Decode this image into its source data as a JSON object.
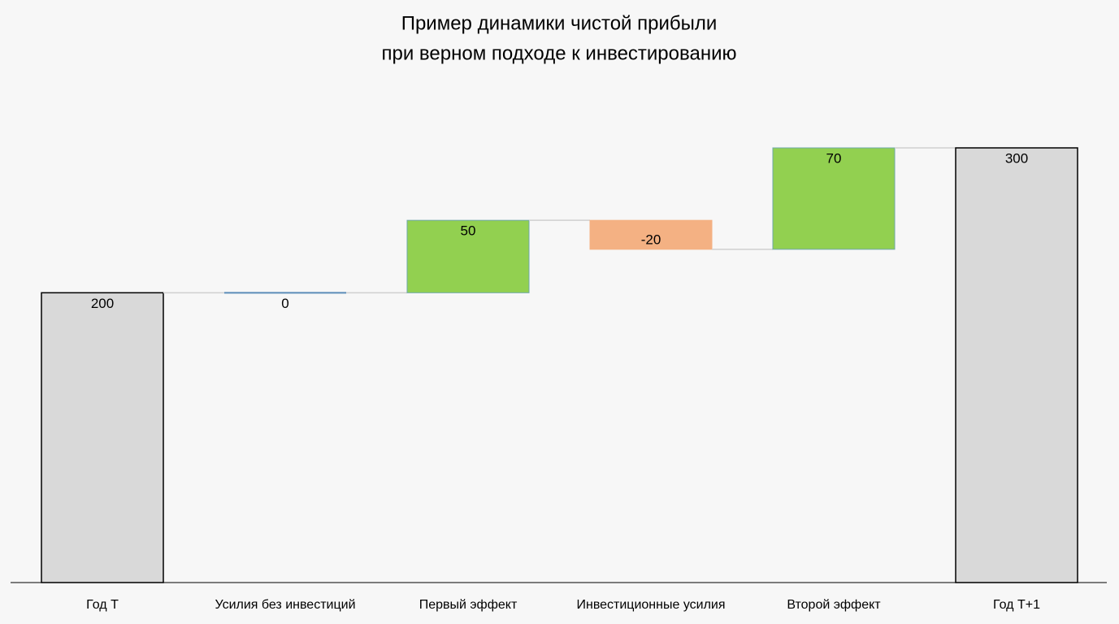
{
  "chart_data": {
    "type": "waterfall",
    "title": [
      "Пример динамики чистой прибыли",
      "при верном подходе к инвестированию"
    ],
    "categories": [
      "Год Т",
      "Усилия без инвестиций",
      "Первый эффект",
      "Инвестиционные усилия",
      "Второй эффект",
      "Год Т+1"
    ],
    "values": [
      200,
      0,
      50,
      -20,
      70,
      300
    ],
    "measure": [
      "total",
      "relative",
      "relative",
      "relative",
      "relative",
      "total"
    ],
    "colors": {
      "total": "#d9d9d9",
      "increase": "#92d050",
      "decrease": "#f4b183",
      "zero": "#5b8db8"
    },
    "ylim": [
      0,
      300
    ]
  }
}
